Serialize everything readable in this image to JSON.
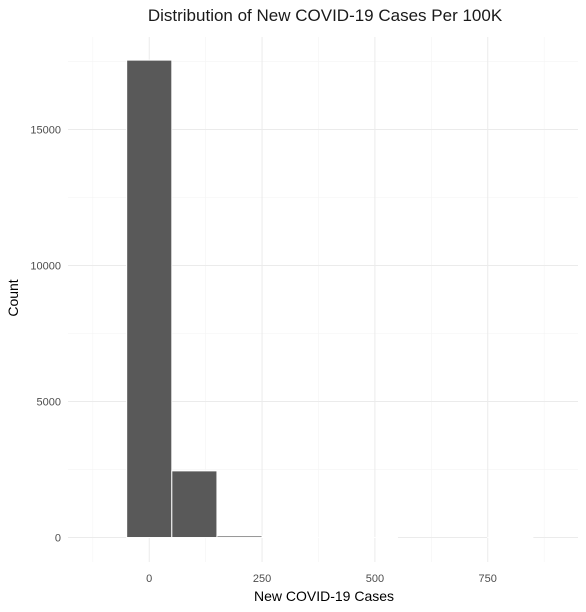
{
  "chart_data": {
    "type": "bar",
    "title": "Distribution of New COVID-19 Cases Per 100K",
    "xlabel": "New COVID-19 Cases",
    "ylabel": "Count",
    "bins": [
      {
        "x0": -50,
        "x1": 50,
        "count": 17550
      },
      {
        "x0": 50,
        "x1": 150,
        "count": 2450
      },
      {
        "x0": 150,
        "x1": 250,
        "count": 60
      },
      {
        "x0": 250,
        "x1": 350,
        "count": 3
      },
      {
        "x0": 350,
        "x1": 450,
        "count": 1
      },
      {
        "x0": 450,
        "x1": 550,
        "count": 1
      },
      {
        "x0": 550,
        "x1": 650,
        "count": 0
      },
      {
        "x0": 650,
        "x1": 750,
        "count": 0
      },
      {
        "x0": 750,
        "x1": 850,
        "count": 1
      }
    ],
    "x_ticks": [
      0,
      250,
      500,
      750
    ],
    "x_tick_labels": [
      "0",
      "250",
      "500",
      "750"
    ],
    "y_ticks": [
      0,
      5000,
      10000,
      15000
    ],
    "y_tick_labels": [
      "0",
      "5000",
      "10000",
      "15000"
    ],
    "xlim": [
      -180,
      950
    ],
    "ylim": [
      -900,
      18400
    ],
    "grid": true,
    "bar_color": "#595959",
    "legend": "none"
  }
}
